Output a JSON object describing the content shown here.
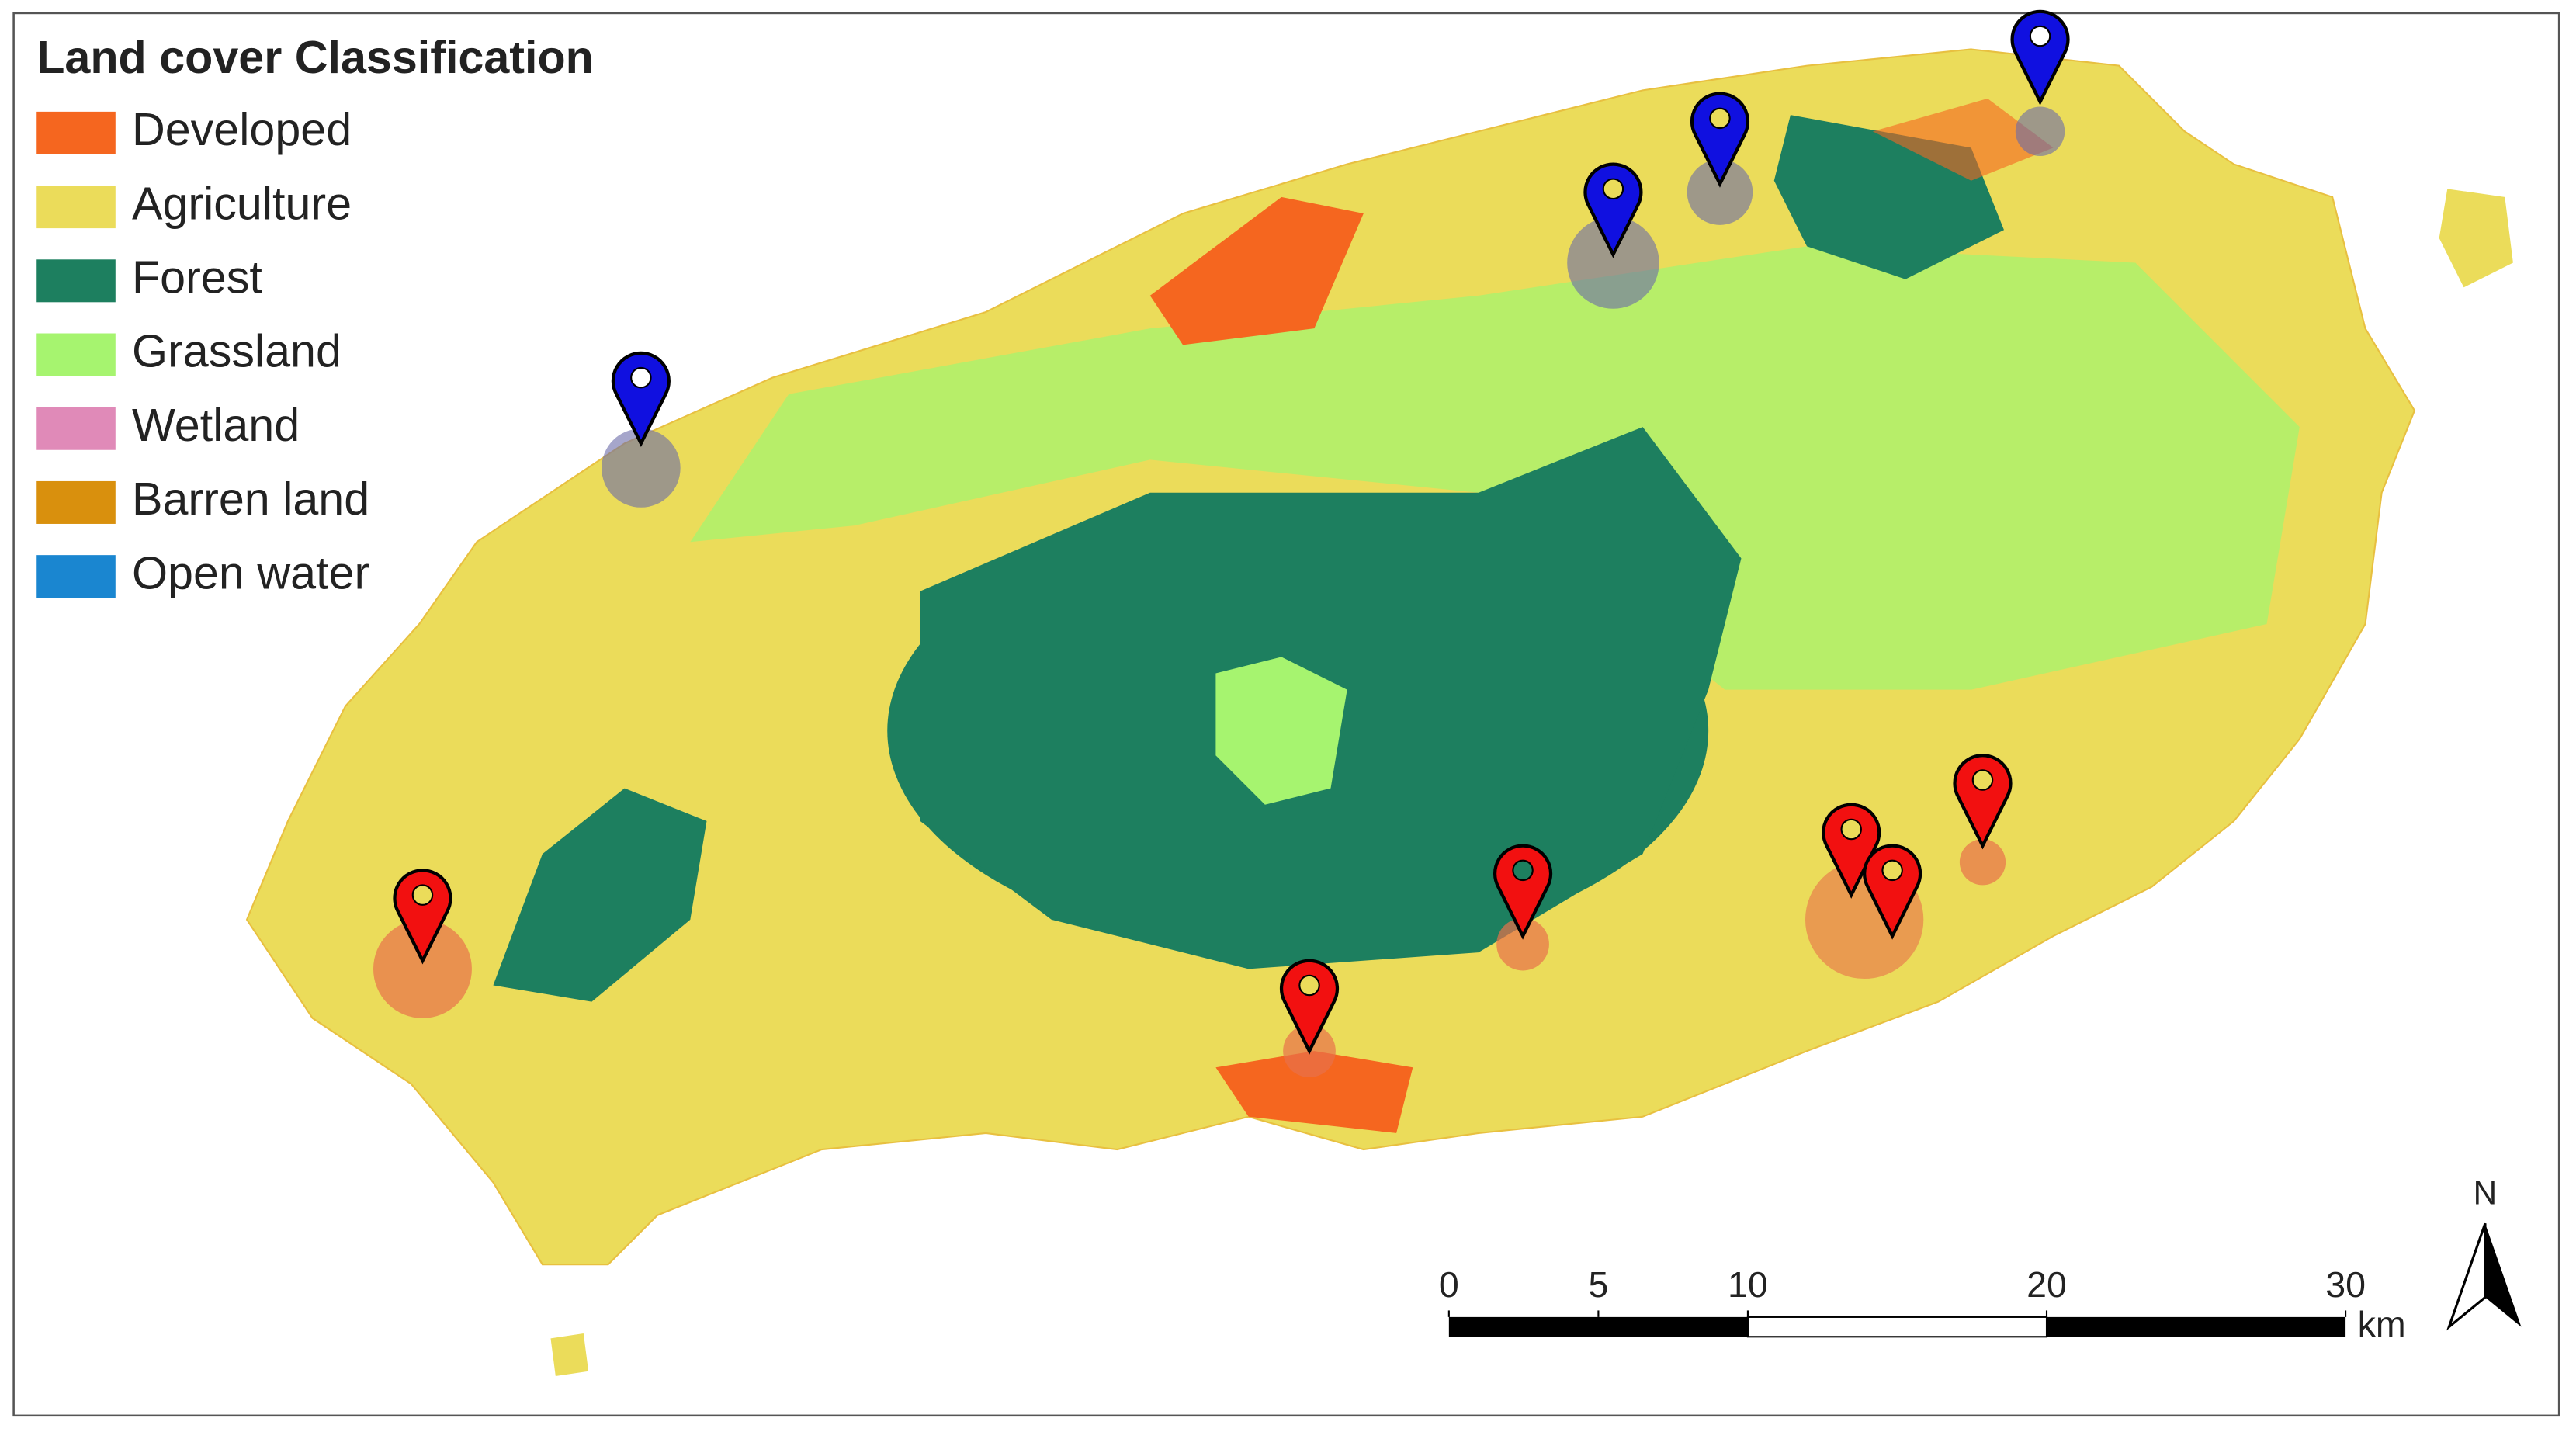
{
  "legend": {
    "title": "Land cover Classification",
    "items": [
      {
        "label": "Developed",
        "color": "#f5661f"
      },
      {
        "label": "Agriculture",
        "color": "#ebdc5a"
      },
      {
        "label": "Forest",
        "color": "#1d7f5f"
      },
      {
        "label": "Grassland",
        "color": "#a6f46f"
      },
      {
        "label": "Wetland",
        "color": "#e08ab8"
      },
      {
        "label": "Barren land",
        "color": "#d9900d"
      },
      {
        "label": "Open water",
        "color": "#1a86d0"
      }
    ]
  },
  "scale_bar": {
    "ticks": [
      0,
      5,
      10,
      20,
      30
    ],
    "unit": "km"
  },
  "north_label": "N"
}
